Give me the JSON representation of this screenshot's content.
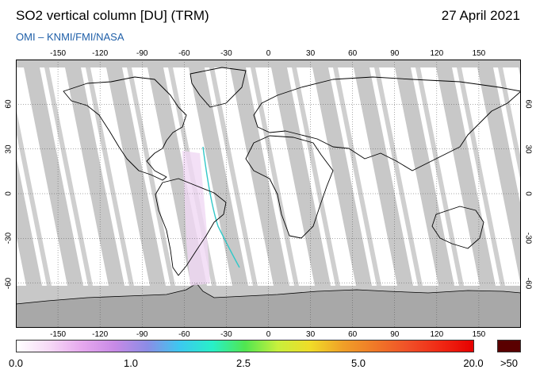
{
  "header": {
    "title": "SO2 vertical column [DU] (TRM)",
    "date": "27 April 2021",
    "credit": "OMI  –  KNMI/FMI/NASA"
  },
  "map": {
    "projection": "equirectangular",
    "lon_range": [
      -180,
      180
    ],
    "lat_range": [
      -90,
      90
    ],
    "lon_ticks": [
      "-150",
      "-120",
      "-90",
      "-60",
      "-30",
      "0",
      "30",
      "60",
      "90",
      "120",
      "150"
    ],
    "lat_ticks": [
      "60",
      "30",
      "0",
      "-30",
      "-60"
    ],
    "colors": {
      "no_data": "#c8c8c8",
      "night_polar": "#a8a8a8",
      "low_value": "#ffffff",
      "coastline": "#000000",
      "graticule": "#555555"
    }
  },
  "colorbar": {
    "labels": [
      "0.0",
      "1.0",
      "2.5",
      "5.0",
      "20.0",
      ">50"
    ],
    "colors": [
      "#ffffff",
      "#f6d9f6",
      "#e6a8ee",
      "#c88ae6",
      "#8c8ce6",
      "#3cc8f0",
      "#28f0c8",
      "#50e650",
      "#c8f03c",
      "#f0dc28",
      "#f0a028",
      "#f07828",
      "#f05028",
      "#f02814",
      "#e60000"
    ],
    "overflow_color": "#5a0000"
  }
}
